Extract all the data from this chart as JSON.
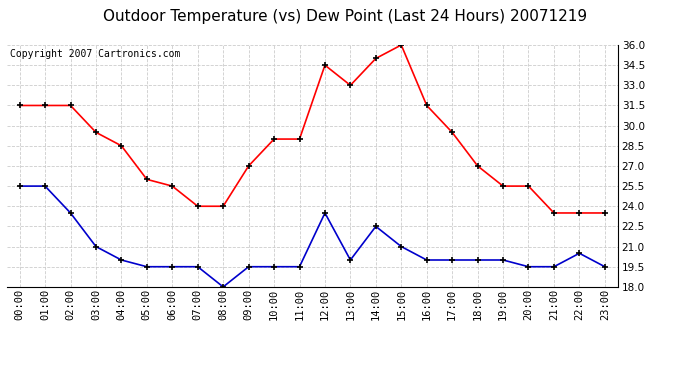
{
  "title": "Outdoor Temperature (vs) Dew Point (Last 24 Hours) 20071219",
  "copyright_text": "Copyright 2007 Cartronics.com",
  "hours": [
    "00:00",
    "01:00",
    "02:00",
    "03:00",
    "04:00",
    "05:00",
    "06:00",
    "07:00",
    "08:00",
    "09:00",
    "10:00",
    "11:00",
    "12:00",
    "13:00",
    "14:00",
    "15:00",
    "16:00",
    "17:00",
    "18:00",
    "19:00",
    "20:00",
    "21:00",
    "22:00",
    "23:00"
  ],
  "temp_red": [
    31.5,
    31.5,
    31.5,
    29.5,
    28.5,
    26.0,
    25.5,
    24.0,
    24.0,
    27.0,
    29.0,
    29.0,
    34.5,
    33.0,
    35.0,
    36.0,
    31.5,
    29.5,
    27.0,
    25.5,
    25.5,
    23.5,
    23.5,
    23.5
  ],
  "dew_blue": [
    25.5,
    25.5,
    23.5,
    21.0,
    20.0,
    19.5,
    19.5,
    19.5,
    18.0,
    19.5,
    19.5,
    19.5,
    23.5,
    20.0,
    22.5,
    21.0,
    20.0,
    20.0,
    20.0,
    20.0,
    19.5,
    19.5,
    20.5,
    19.5
  ],
  "ylim_min": 18.0,
  "ylim_max": 36.0,
  "yticks": [
    18.0,
    19.5,
    21.0,
    22.5,
    24.0,
    25.5,
    27.0,
    28.5,
    30.0,
    31.5,
    33.0,
    34.5,
    36.0
  ],
  "red_color": "#ff0000",
  "blue_color": "#0000cc",
  "bg_color": "#ffffff",
  "grid_color": "#cccccc",
  "title_fontsize": 11,
  "copyright_fontsize": 7,
  "tick_fontsize": 7.5
}
